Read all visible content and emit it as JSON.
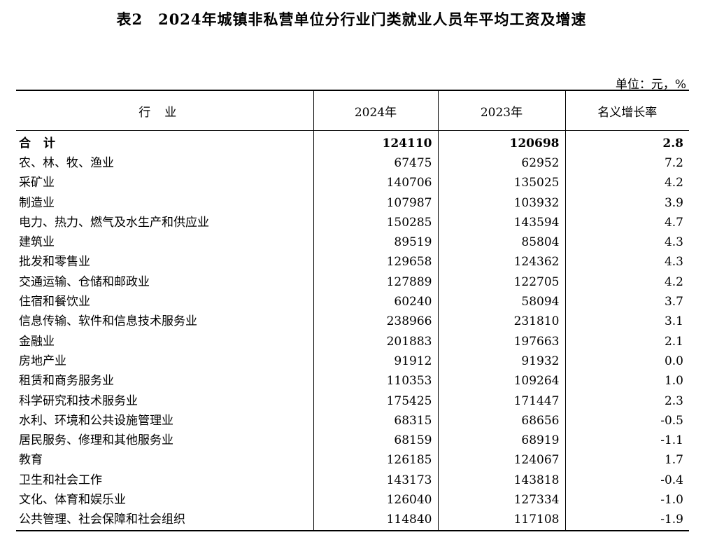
{
  "title": "表2　2024年城镇非私营单位分行业门类就业人员年平均工资及增速",
  "unit": "单位：元，%",
  "headers": [
    "行业",
    "2024年",
    "2023年",
    "名义增长率"
  ],
  "rows": [
    [
      "合计",
      "124110",
      "120698",
      "2.8"
    ],
    [
      "农、林、牧、渔业",
      "67475",
      "62952",
      "7.2"
    ],
    [
      "采矿业",
      "140706",
      "135025",
      "4.2"
    ],
    [
      "制造业",
      "107987",
      "103932",
      "3.9"
    ],
    [
      "电力、热力、燃气及水生产和供应业",
      "150285",
      "143594",
      "4.7"
    ],
    [
      "建筑业",
      "89519",
      "85804",
      "4.3"
    ],
    [
      "批发和零售业",
      "129658",
      "124362",
      "4.3"
    ],
    [
      "交通运输、仓储和邮政业",
      "127889",
      "122705",
      "4.2"
    ],
    [
      "住宿和餐饮业",
      "60240",
      "58094",
      "3.7"
    ],
    [
      "信息传输、软件和信息技术服务业",
      "238966",
      "231810",
      "3.1"
    ],
    [
      "金融业",
      "201883",
      "197663",
      "2.1"
    ],
    [
      "房地产业",
      "91912",
      "91932",
      "0.0"
    ],
    [
      "租赁和商务服务业",
      "110353",
      "109264",
      "1.0"
    ],
    [
      "科学研究和技术服务业",
      "175425",
      "171447",
      "2.3"
    ],
    [
      "水利、环境和公共设施管理业",
      "68315",
      "68656",
      "-0.5"
    ],
    [
      "居民服务、修理和其他服务业",
      "68159",
      "68919",
      "-1.1"
    ],
    [
      "教育",
      "126185",
      "124067",
      "1.7"
    ],
    [
      "卫生和社会工作",
      "143173",
      "143818",
      "-0.4"
    ],
    [
      "文化、体育和娱乐业",
      "126040",
      "127334",
      "-1.0"
    ],
    [
      "公共管理、社会保障和社会组织",
      "114840",
      "117108",
      "-1.9"
    ]
  ]
}
